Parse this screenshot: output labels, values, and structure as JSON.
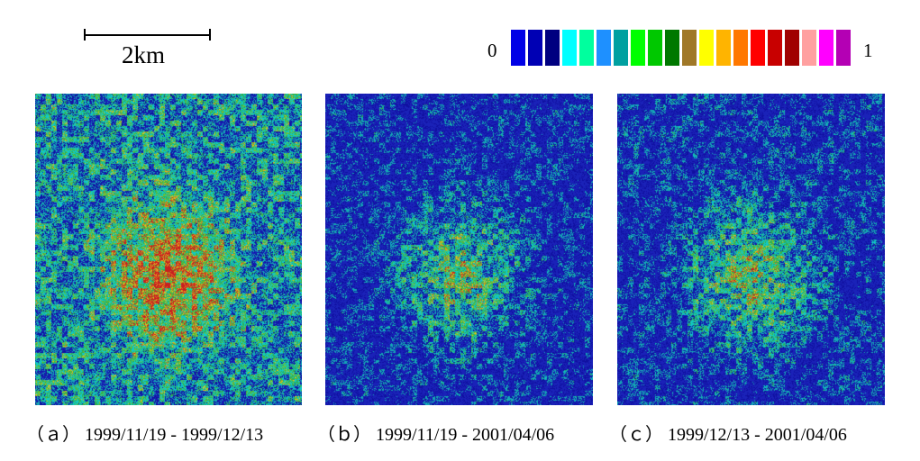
{
  "scale": {
    "label": "2km"
  },
  "colorbar": {
    "min_label": "0",
    "max_label": "1",
    "colors": [
      "#0000e6",
      "#0000b4",
      "#000080",
      "#00ffff",
      "#00ff9e",
      "#1e90ff",
      "#00a0a0",
      "#00ff00",
      "#00c800",
      "#007800",
      "#a07828",
      "#ffff00",
      "#ffb400",
      "#ff7800",
      "#ff0000",
      "#c80000",
      "#a00000",
      "#ffa0a0",
      "#ff00ff",
      "#b400b4"
    ]
  },
  "panels": [
    {
      "caption": "（ａ） 1999/11/19 - 1999/12/13",
      "coherence_level": 0.55
    },
    {
      "caption": "（ｂ） 1999/11/19 - 2001/04/06",
      "coherence_level": 0.25
    },
    {
      "caption": "（ｃ） 1999/12/13 - 2001/04/06",
      "coherence_level": 0.28
    }
  ]
}
